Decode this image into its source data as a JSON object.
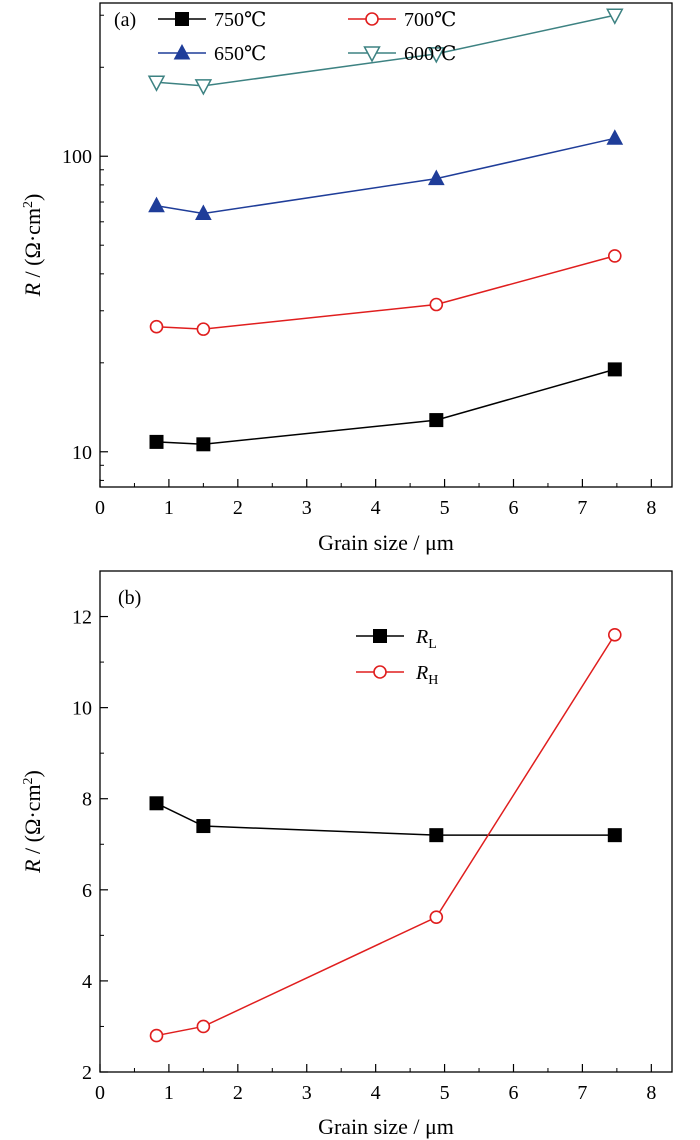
{
  "chart_data": [
    {
      "type": "line",
      "panel_label": "(a)",
      "xlabel": "Grain size / μm",
      "ylabel_var": "R",
      "ylabel_rest": " / (Ω·cm",
      "ylabel_sup": "2",
      "ylabel_close": ")",
      "xlim": [
        0,
        8.3
      ],
      "ylim": [
        7.6,
        330
      ],
      "y_scale": "log",
      "x_ticks": [
        0,
        1,
        2,
        3,
        4,
        5,
        6,
        7,
        8
      ],
      "x_tick_labels": [
        "0",
        "1",
        "2",
        "3",
        "4",
        "5",
        "6",
        "7",
        "8"
      ],
      "y_ticks": [
        10,
        100
      ],
      "y_tick_labels": [
        "10",
        "100"
      ],
      "grid": false,
      "legend_position": "top",
      "series": [
        {
          "name": "750℃",
          "color": "#000000",
          "marker": "square-filled",
          "x": [
            0.82,
            1.5,
            4.88,
            7.47
          ],
          "y": [
            10.8,
            10.6,
            12.8,
            19.0
          ]
        },
        {
          "name": "700℃",
          "color": "#e01e1e",
          "marker": "circle-open",
          "x": [
            0.82,
            1.5,
            4.88,
            7.47
          ],
          "y": [
            26.5,
            26.0,
            31.5,
            46.0
          ]
        },
        {
          "name": "650℃",
          "color": "#1f3d99",
          "marker": "triangle-up-filled",
          "x": [
            0.82,
            1.5,
            4.88,
            7.47
          ],
          "y": [
            68.0,
            64.0,
            84.0,
            115.0
          ]
        },
        {
          "name": "600℃",
          "color": "#3d8282",
          "marker": "triangle-down-open",
          "x": [
            0.82,
            1.5,
            4.88,
            7.47
          ],
          "y": [
            178.0,
            173.0,
            222.0,
            300.0
          ]
        }
      ]
    },
    {
      "type": "line",
      "panel_label": "(b)",
      "xlabel": "Grain size / μm",
      "ylabel_var": "R",
      "ylabel_rest": " / (Ω·cm",
      "ylabel_sup": "2",
      "ylabel_close": ")",
      "xlim": [
        0,
        8.3
      ],
      "ylim": [
        2,
        13
      ],
      "y_scale": "linear",
      "x_ticks": [
        0,
        1,
        2,
        3,
        4,
        5,
        6,
        7,
        8
      ],
      "x_tick_labels": [
        "0",
        "1",
        "2",
        "3",
        "4",
        "5",
        "6",
        "7",
        "8"
      ],
      "y_ticks": [
        2,
        4,
        6,
        8,
        10,
        12
      ],
      "y_tick_labels": [
        "2",
        "4",
        "6",
        "8",
        "10",
        "12"
      ],
      "grid": false,
      "legend_position": "top-center",
      "series": [
        {
          "name_main": "R",
          "name_sub": "L",
          "color": "#000000",
          "marker": "square-filled",
          "x": [
            0.82,
            1.5,
            4.88,
            7.47
          ],
          "y": [
            7.9,
            7.4,
            7.2,
            7.2
          ]
        },
        {
          "name_main": "R",
          "name_sub": "H",
          "color": "#e01e1e",
          "marker": "circle-open",
          "x": [
            0.82,
            1.5,
            4.88,
            7.47
          ],
          "y": [
            2.8,
            3.0,
            5.4,
            11.6
          ]
        }
      ]
    }
  ]
}
